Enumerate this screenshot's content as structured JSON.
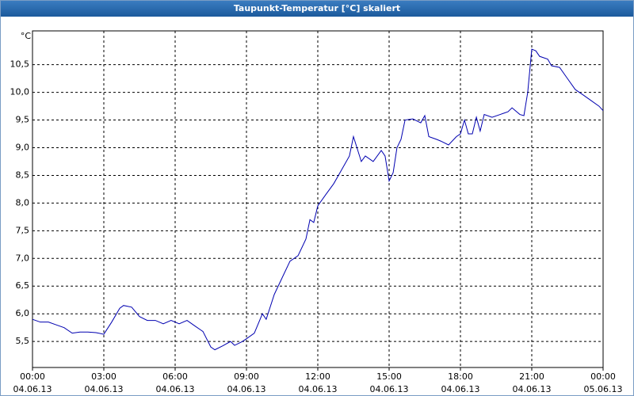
{
  "chart_data": {
    "type": "line",
    "title": "Taupunkt-Temperatur [°C] skaliert",
    "y_unit": "°C",
    "x": [
      0,
      0.33,
      0.67,
      1.0,
      1.33,
      1.67,
      2.0,
      2.33,
      2.67,
      3.0,
      3.33,
      3.67,
      3.83,
      4.17,
      4.5,
      4.83,
      5.17,
      5.5,
      5.83,
      6.17,
      6.5,
      6.83,
      7.17,
      7.5,
      7.67,
      8.0,
      8.33,
      8.5,
      8.83,
      9.0,
      9.33,
      9.67,
      9.83,
      10.17,
      10.5,
      10.83,
      11.17,
      11.5,
      11.67,
      11.83,
      12.0,
      12.33,
      12.67,
      13.0,
      13.33,
      13.5,
      13.83,
      14.0,
      14.33,
      14.67,
      14.83,
      15.0,
      15.17,
      15.33,
      15.5,
      15.67,
      16.0,
      16.33,
      16.5,
      16.67,
      17.0,
      17.17,
      17.5,
      17.83,
      18.0,
      18.17,
      18.33,
      18.5,
      18.67,
      18.83,
      19.0,
      19.33,
      19.67,
      20.0,
      20.17,
      20.5,
      20.67,
      20.83,
      21.0,
      21.17,
      21.33,
      21.67,
      21.83,
      22.17,
      22.5,
      22.83,
      23.17,
      23.5,
      23.83,
      24.0
    ],
    "series": [
      {
        "name": "Taupunkt-Temperatur",
        "color": "#0000b0",
        "values": [
          5.9,
          5.85,
          5.85,
          5.8,
          5.75,
          5.65,
          5.67,
          5.67,
          5.66,
          5.63,
          5.85,
          6.1,
          6.15,
          6.12,
          5.95,
          5.88,
          5.88,
          5.82,
          5.88,
          5.82,
          5.88,
          5.78,
          5.68,
          5.4,
          5.35,
          5.42,
          5.5,
          5.43,
          5.5,
          5.55,
          5.65,
          6.0,
          5.9,
          6.35,
          6.65,
          6.95,
          7.05,
          7.35,
          7.7,
          7.65,
          7.95,
          8.15,
          8.35,
          8.6,
          8.85,
          9.2,
          8.75,
          8.85,
          8.75,
          8.95,
          8.85,
          8.4,
          8.55,
          9.0,
          9.15,
          9.5,
          9.52,
          9.45,
          9.58,
          9.2,
          9.15,
          9.12,
          9.05,
          9.2,
          9.25,
          9.5,
          9.25,
          9.25,
          9.55,
          9.3,
          9.6,
          9.55,
          9.6,
          9.65,
          9.72,
          9.6,
          9.58,
          10.0,
          10.78,
          10.75,
          10.65,
          10.6,
          10.48,
          10.45,
          10.25,
          10.05,
          9.95,
          9.85,
          9.75,
          9.67
        ]
      }
    ],
    "xlim": [
      0,
      24
    ],
    "xticks": [
      {
        "value": 0,
        "label": "00:00\n04.06.13"
      },
      {
        "value": 3,
        "label": "03:00\n04.06.13"
      },
      {
        "value": 6,
        "label": "06:00\n04.06.13"
      },
      {
        "value": 9,
        "label": "09:00\n04.06.13"
      },
      {
        "value": 12,
        "label": "12:00\n04.06.13"
      },
      {
        "value": 15,
        "label": "15:00\n04.06.13"
      },
      {
        "value": 18,
        "label": "18:00\n04.06.13"
      },
      {
        "value": 21,
        "label": "21:00\n04.06.13"
      },
      {
        "value": 24,
        "label": "00:00\n05.06.13"
      }
    ],
    "ylim": [
      5.03,
      11.11
    ],
    "yticks": [
      {
        "value": 5.5,
        "label": "5,5"
      },
      {
        "value": 6.0,
        "label": "6,0"
      },
      {
        "value": 6.5,
        "label": "6,5"
      },
      {
        "value": 7.0,
        "label": "7,0"
      },
      {
        "value": 7.5,
        "label": "7,5"
      },
      {
        "value": 8.0,
        "label": "8,0"
      },
      {
        "value": 8.5,
        "label": "8,5"
      },
      {
        "value": 9.0,
        "label": "9,0"
      },
      {
        "value": 9.5,
        "label": "9,5"
      },
      {
        "value": 10.0,
        "label": "10,0"
      },
      {
        "value": 10.5,
        "label": "10,5"
      }
    ],
    "grid": true
  }
}
